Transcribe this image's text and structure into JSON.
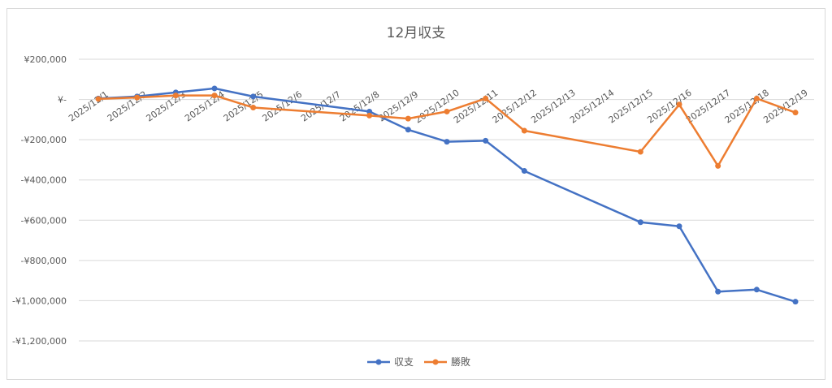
{
  "chart_data": {
    "type": "line",
    "title": "12月収支",
    "x": [
      "2025/12/1",
      "2025/12/2",
      "2025/12/3",
      "2025/12/4",
      "2025/12/5",
      "2025/12/6",
      "2025/12/7",
      "2025/12/8",
      "2025/12/9",
      "2025/12/10",
      "2025/12/11",
      "2025/12/12",
      "2025/12/13",
      "2025/12/14",
      "2025/12/15",
      "2025/12/16",
      "2025/12/17",
      "2025/12/18",
      "2025/12/19"
    ],
    "y_tick_values": [
      200000,
      0,
      -200000,
      -400000,
      -600000,
      -800000,
      -1000000,
      -1200000
    ],
    "y_tick_labels": [
      "¥200,000",
      "¥-",
      "-¥200,000",
      "-¥400,000",
      "-¥600,000",
      "-¥800,000",
      "-¥1,000,000",
      "-¥1,200,000"
    ],
    "ylim": [
      -1200000,
      200000
    ],
    "grid": true,
    "legend_position": "bottom",
    "series": [
      {
        "name": "収支",
        "color": "#4472c4",
        "values": [
          5000,
          15000,
          35000,
          55000,
          15000,
          null,
          null,
          -60000,
          -150000,
          -210000,
          -205000,
          -355000,
          null,
          null,
          -610000,
          -630000,
          -955000,
          -945000,
          -1005000
        ]
      },
      {
        "name": "勝敗",
        "color": "#ed7d31",
        "values": [
          3000,
          10000,
          20000,
          20000,
          -40000,
          null,
          null,
          -80000,
          -95000,
          -60000,
          5000,
          -155000,
          null,
          null,
          -260000,
          -25000,
          -330000,
          5000,
          -65000
        ]
      }
    ]
  }
}
